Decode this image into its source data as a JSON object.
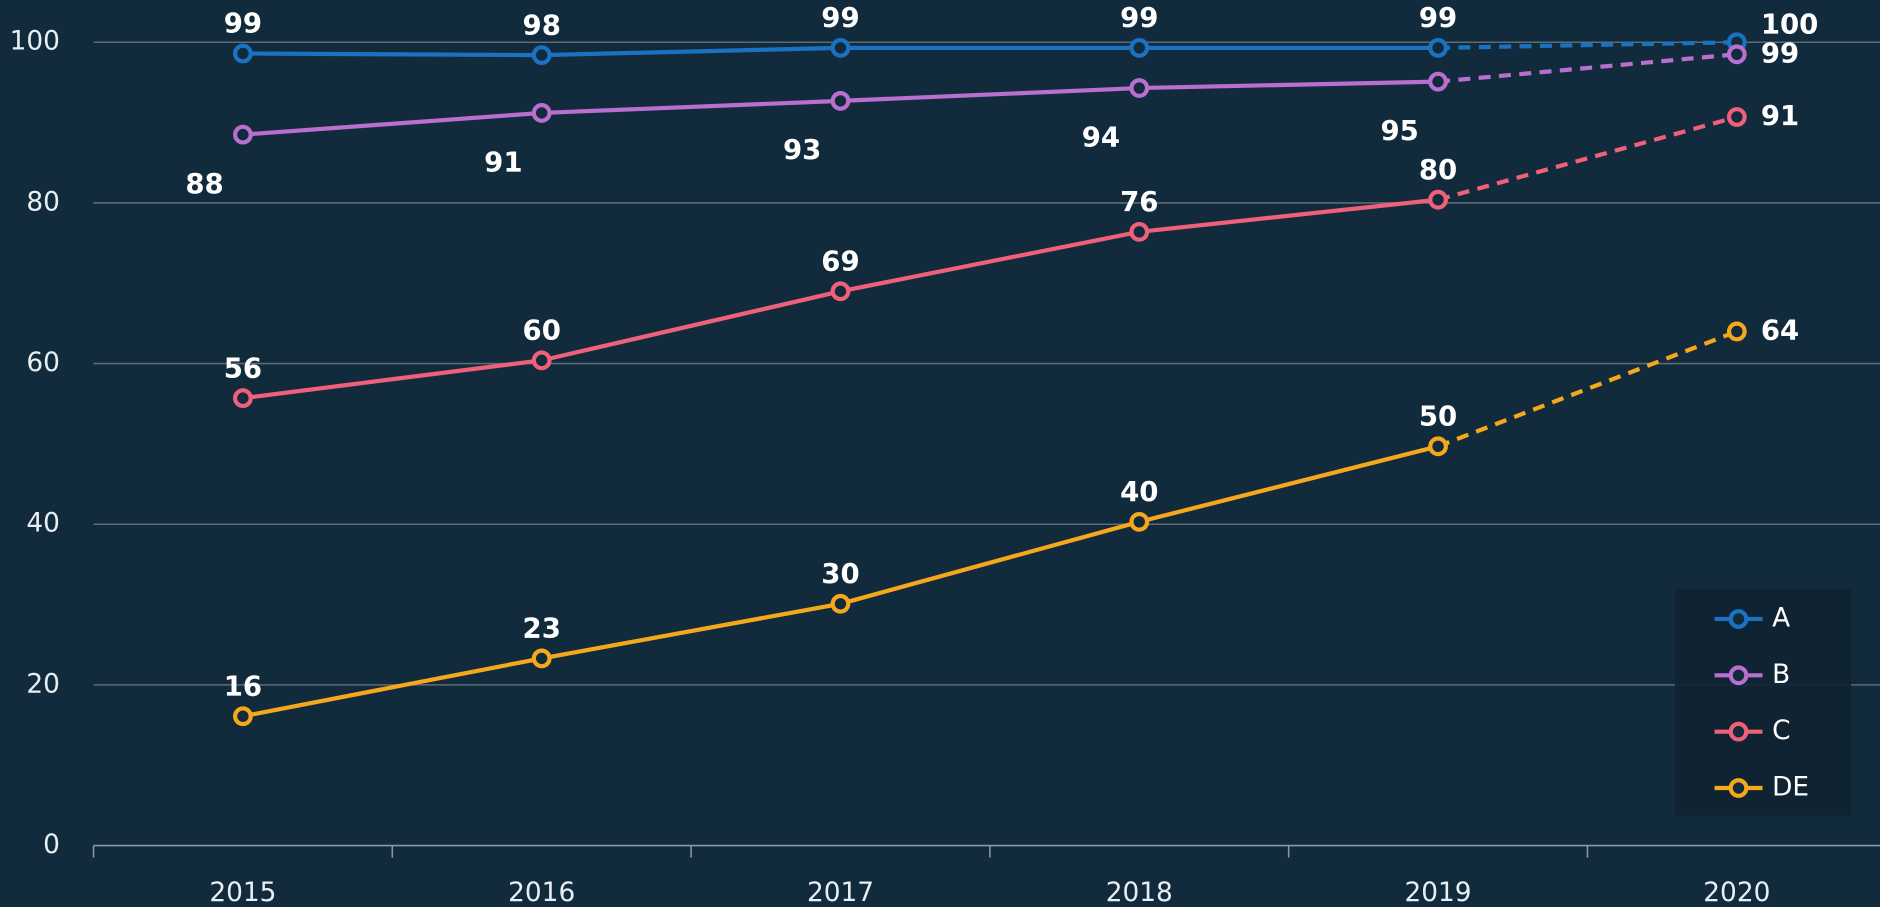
{
  "chart_data": {
    "type": "line",
    "categories": [
      "2015",
      "2016",
      "2017",
      "2018",
      "2019",
      "2020"
    ],
    "series": [
      {
        "name": "A",
        "color": "#1a73c2",
        "values": [
          98.6,
          98.4,
          99.3,
          99.3,
          99.3,
          100
        ],
        "value_labels": [
          "99",
          "98",
          "99",
          "99",
          "99",
          "100"
        ]
      },
      {
        "name": "B",
        "color": "#b86fd0",
        "values": [
          88.5,
          91.2,
          92.7,
          94.3,
          95.1,
          98.5
        ],
        "value_labels": [
          "88",
          "91",
          "93",
          "94",
          "95",
          "99"
        ]
      },
      {
        "name": "C",
        "color": "#f0607a",
        "values": [
          55.7,
          60.4,
          69.0,
          76.4,
          80.4,
          90.7
        ],
        "value_labels": [
          "56",
          "60",
          "69",
          "76",
          "80",
          "91"
        ]
      },
      {
        "name": "DE",
        "color": "#f5a81c",
        "values": [
          16.1,
          23.3,
          30.1,
          40.3,
          49.7,
          64.0
        ],
        "value_labels": [
          "16",
          "23",
          "30",
          "40",
          "50",
          "64"
        ]
      }
    ],
    "dashed_from": 4,
    "ylim": [
      0,
      100
    ],
    "yticks": [
      0,
      20,
      40,
      60,
      80,
      100
    ],
    "grid": true,
    "legend": "lower right"
  }
}
